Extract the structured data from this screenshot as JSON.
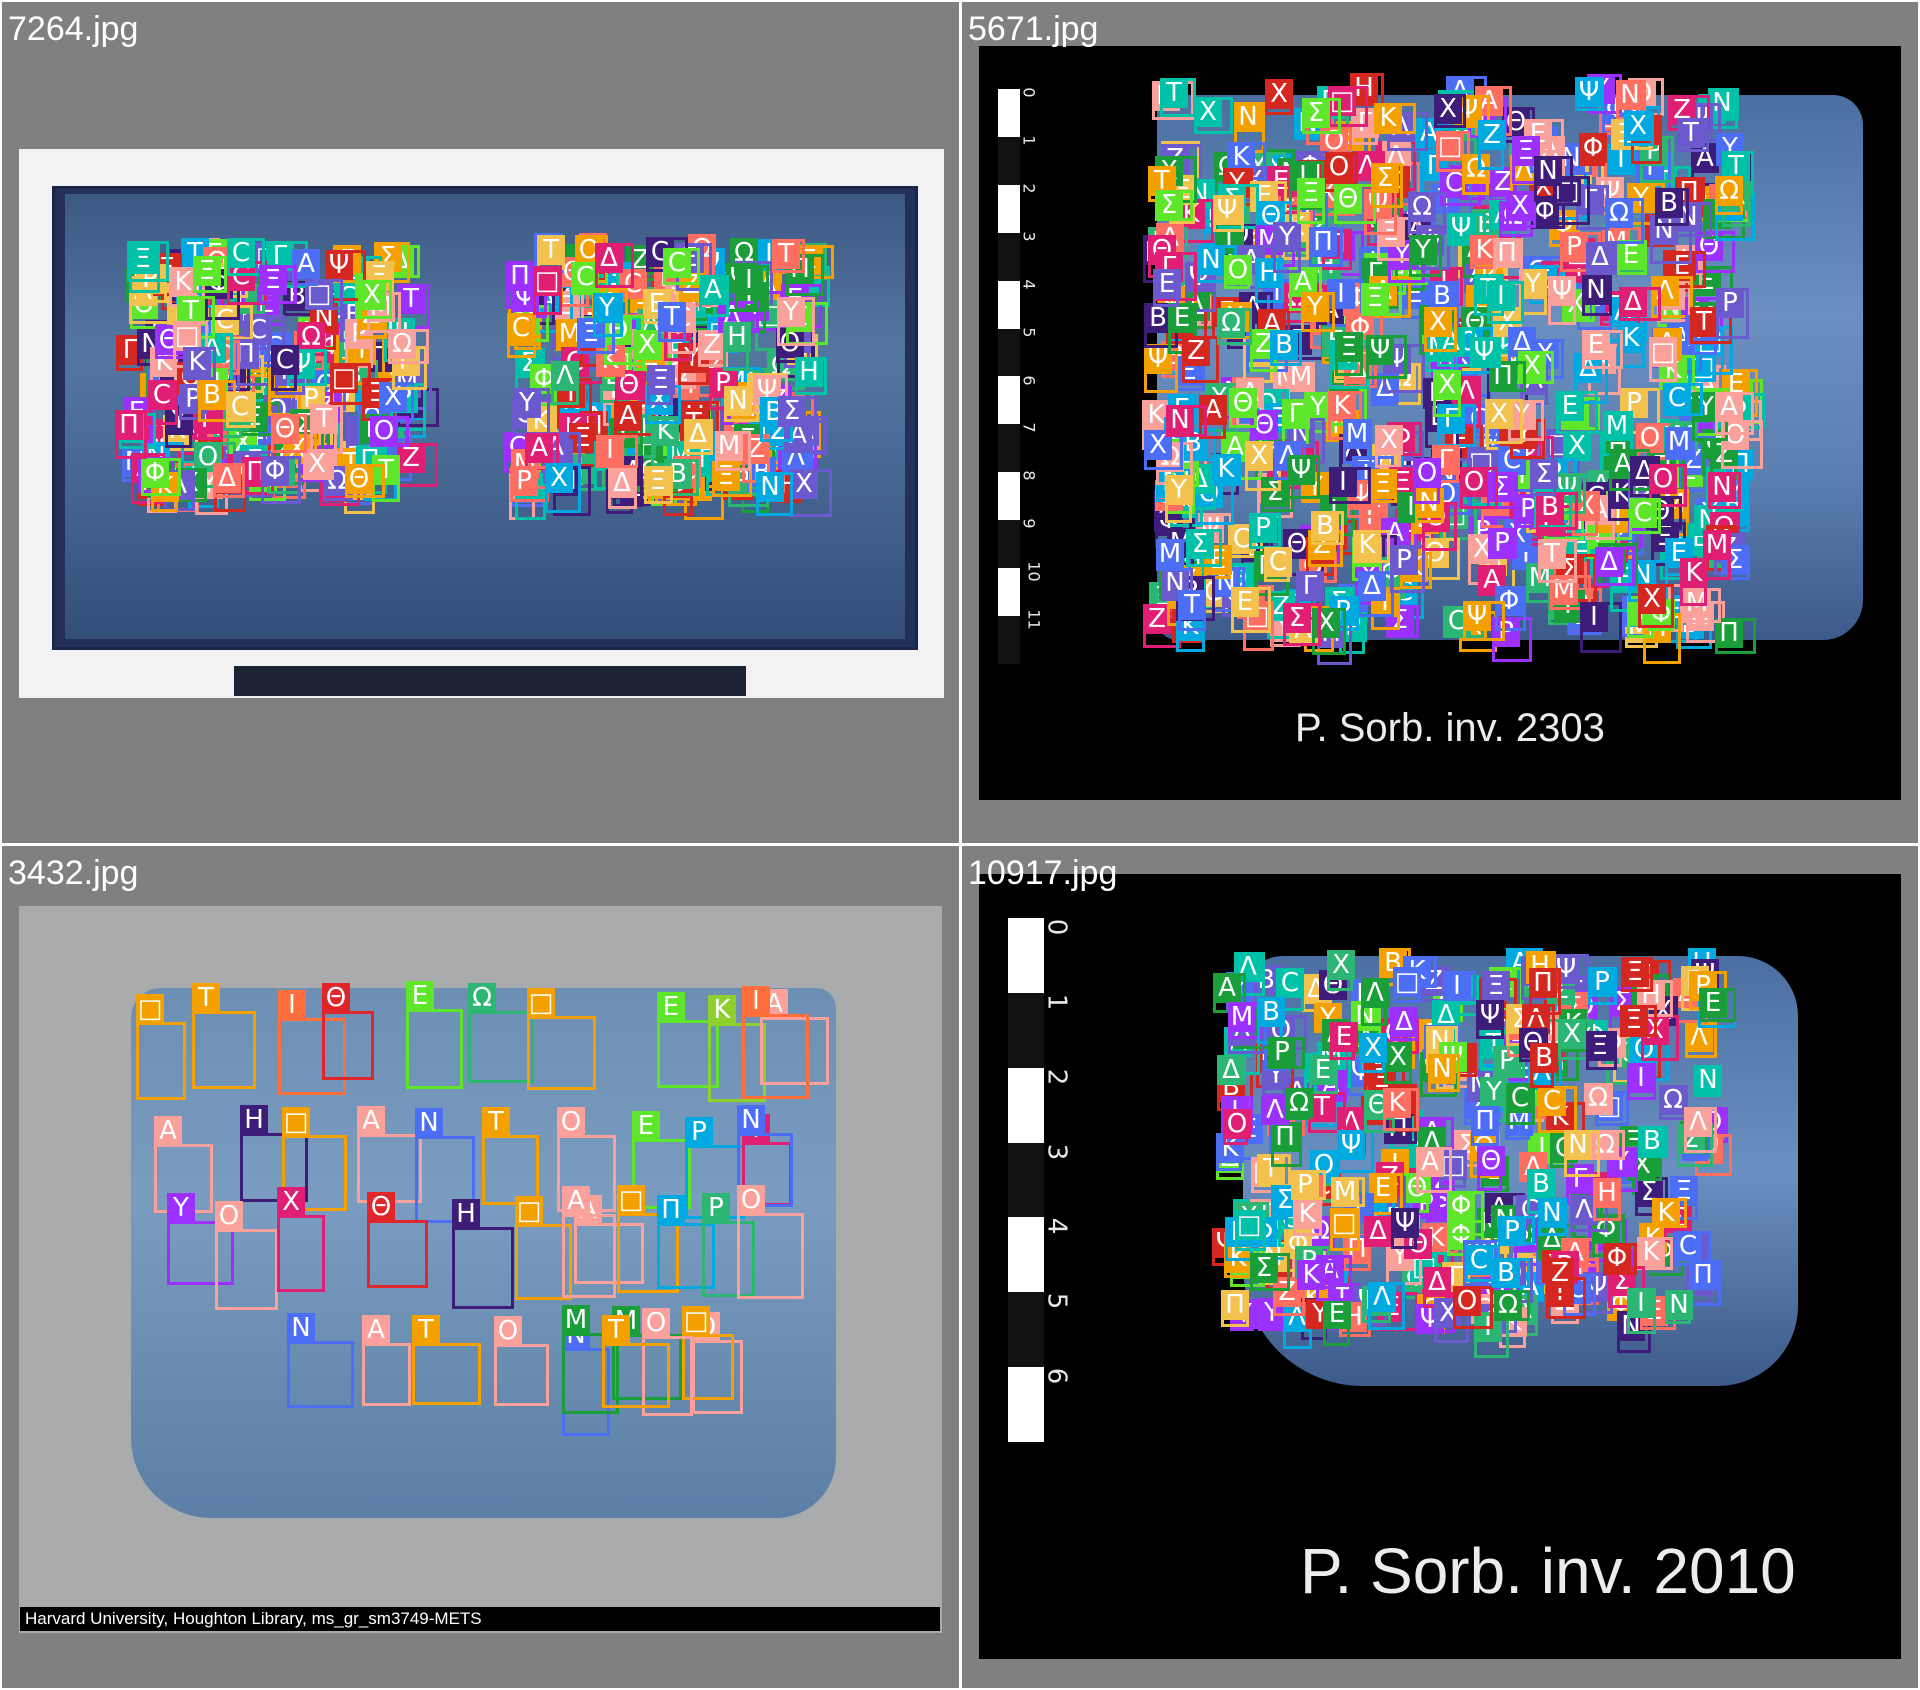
{
  "panels": [
    {
      "id": "top-left",
      "filename": "7264.jpg"
    },
    {
      "id": "top-right",
      "filename": "5671.jpg",
      "caption": "P. Sorb. inv. 2303",
      "ruler_labels": [
        "0",
        "1",
        "2",
        "3",
        "4",
        "5",
        "6",
        "7",
        "8",
        "9",
        "10",
        "11"
      ]
    },
    {
      "id": "bottom-left",
      "filename": "3432.jpg",
      "credit": "Harvard University, Houghton Library, ms_gr_sm3749-METS"
    },
    {
      "id": "bottom-right",
      "filename": "10917.jpg",
      "caption": "P. Sorb. inv. 2010",
      "ruler_labels": [
        "0",
        "1",
        "2",
        "3",
        "4",
        "5",
        "6"
      ]
    }
  ],
  "letters": [
    "Α",
    "Β",
    "Γ",
    "Δ",
    "Ε",
    "Ζ",
    "Η",
    "Θ",
    "Ι",
    "Κ",
    "Λ",
    "Μ",
    "Ν",
    "Ξ",
    "Ο",
    "Π",
    "Ρ",
    "Σ",
    "Τ",
    "Υ",
    "Φ",
    "Χ",
    "Ψ",
    "Ω",
    "Ϲ",
    "□"
  ],
  "colors": [
    "#f4a100",
    "#f9a19a",
    "#5ee62b",
    "#4c6ef5",
    "#9b30ff",
    "#00a9e0",
    "#e01e73",
    "#1a9e3a",
    "#d4271f",
    "#3d1c7a",
    "#2bb673",
    "#f2c14e",
    "#ff6f61",
    "#6a5acd",
    "#00c2a8"
  ],
  "bottom_left_letters": [
    {
      "t": "□",
      "c": "#f4a100"
    },
    {
      "t": "Τ",
      "c": "#f4a100"
    },
    {
      "t": "Ι",
      "c": "#ff6f3c"
    },
    {
      "t": "Θ",
      "c": "#e0252b"
    },
    {
      "t": "Ε",
      "c": "#5ee62b"
    },
    {
      "t": "Ω",
      "c": "#2bb673"
    },
    {
      "t": "□",
      "c": "#f4a100"
    },
    {
      "t": "Ε",
      "c": "#5ee62b"
    },
    {
      "t": "Κ",
      "c": "#8ed12f"
    },
    {
      "t": "Α",
      "c": "#f9a19a"
    },
    {
      "t": "Ι",
      "c": "#ff6f3c"
    },
    {
      "t": "Α",
      "c": "#f9a19a"
    },
    {
      "t": "Η",
      "c": "#3d1c7a"
    },
    {
      "t": "□",
      "c": "#f4a100"
    },
    {
      "t": "Α",
      "c": "#f9a19a"
    },
    {
      "t": "Ν",
      "c": "#4c6ef5"
    },
    {
      "t": "Τ",
      "c": "#f4a100"
    },
    {
      "t": "Ο",
      "c": "#f9a19a"
    },
    {
      "t": "Ε",
      "c": "#5ee62b"
    },
    {
      "t": "Ρ",
      "c": "#00a9e0"
    },
    {
      "t": "Ι",
      "c": "#e01e73"
    },
    {
      "t": "Ν",
      "c": "#4c6ef5"
    },
    {
      "t": "Υ",
      "c": "#9b30ff"
    },
    {
      "t": "Ο",
      "c": "#f9a19a"
    },
    {
      "t": "Χ",
      "c": "#e01e73"
    },
    {
      "t": "Θ",
      "c": "#e0252b"
    },
    {
      "t": "Η",
      "c": "#3d1c7a"
    },
    {
      "t": "□",
      "c": "#f4a100"
    },
    {
      "t": "Α",
      "c": "#f9a19a"
    },
    {
      "t": "□",
      "c": "#f4a100"
    },
    {
      "t": "Π",
      "c": "#00a9e0"
    },
    {
      "t": "Ρ",
      "c": "#2bb673"
    },
    {
      "t": "Ο",
      "c": "#f9a19a"
    },
    {
      "t": "Α",
      "c": "#f9a19a"
    },
    {
      "t": "Ν",
      "c": "#4c6ef5"
    },
    {
      "t": "Α",
      "c": "#f9a19a"
    },
    {
      "t": "Τ",
      "c": "#f4a100"
    },
    {
      "t": "Ο",
      "c": "#f9a19a"
    },
    {
      "t": "Ν",
      "c": "#4c6ef5"
    },
    {
      "t": "Μ",
      "c": "#1a9e3a"
    },
    {
      "t": "Ο",
      "c": "#f9a19a"
    },
    {
      "t": "□",
      "c": "#f4a100"
    },
    {
      "t": "Ο",
      "c": "#f9a19a"
    },
    {
      "t": "Μ",
      "c": "#1a9e3a"
    },
    {
      "t": "Τ",
      "c": "#f4a100"
    }
  ]
}
